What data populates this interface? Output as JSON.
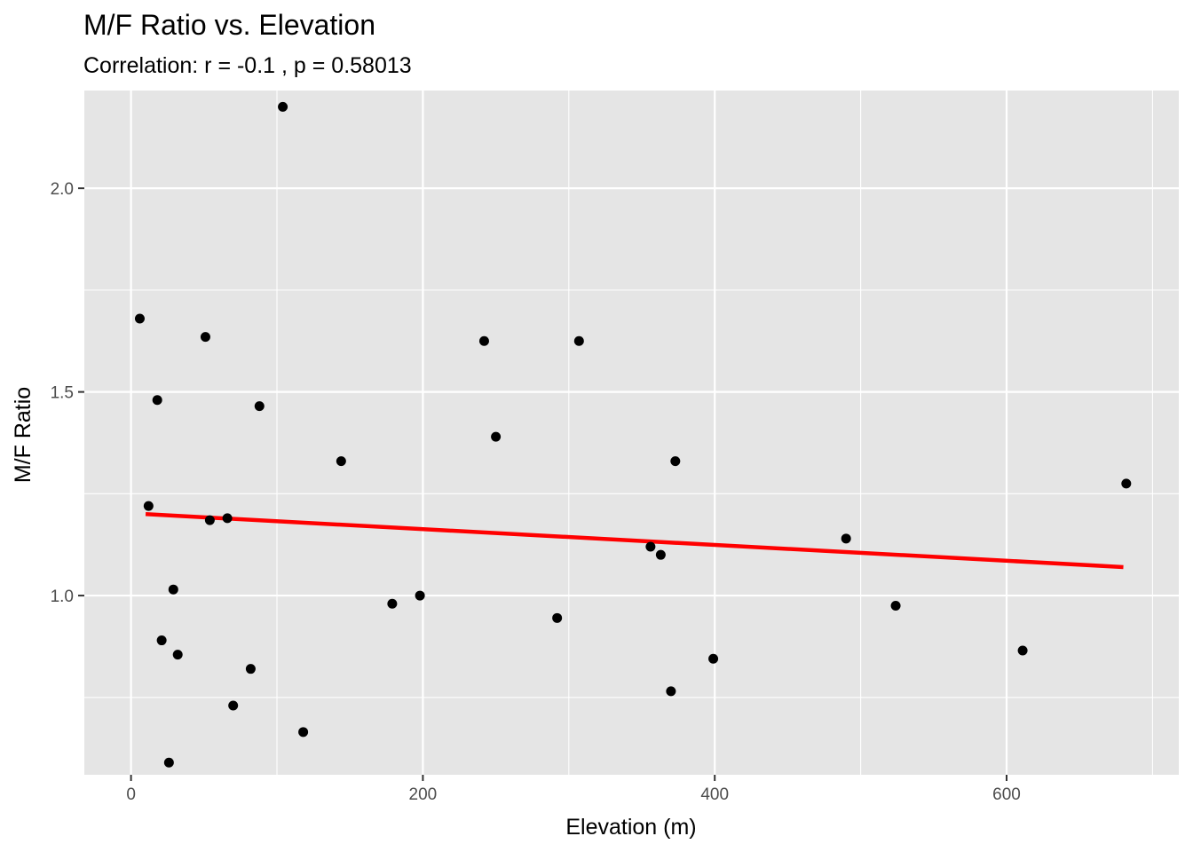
{
  "chart_data": {
    "type": "scatter",
    "title": "M/F Ratio vs. Elevation",
    "subtitle": "Correlation: r = -0.1 , p = 0.58013",
    "xlabel": "Elevation (m)",
    "ylabel": "M/F Ratio",
    "xlim": [
      -32,
      718
    ],
    "ylim": [
      0.56,
      2.24
    ],
    "x_ticks": [
      0,
      200,
      400,
      600
    ],
    "x_tick_labels": [
      "0",
      "200",
      "400",
      "600"
    ],
    "y_ticks": [
      1.0,
      1.5,
      2.0
    ],
    "y_tick_labels": [
      "1.0",
      "1.5",
      "2.0"
    ],
    "grid": true,
    "legend": "none",
    "colors": {
      "panel": "#e5e5e5",
      "grid": "#ffffff",
      "points": "#000000",
      "trend_line": "#ff0000"
    },
    "points": [
      {
        "x": 6,
        "y": 1.68
      },
      {
        "x": 12,
        "y": 1.22
      },
      {
        "x": 18,
        "y": 1.48
      },
      {
        "x": 21,
        "y": 0.89
      },
      {
        "x": 26,
        "y": 0.59
      },
      {
        "x": 29,
        "y": 1.015
      },
      {
        "x": 32,
        "y": 0.855
      },
      {
        "x": 51,
        "y": 1.635
      },
      {
        "x": 54,
        "y": 1.185
      },
      {
        "x": 66,
        "y": 1.19
      },
      {
        "x": 70,
        "y": 0.73
      },
      {
        "x": 82,
        "y": 0.82
      },
      {
        "x": 88,
        "y": 1.465
      },
      {
        "x": 104,
        "y": 2.2
      },
      {
        "x": 118,
        "y": 0.665
      },
      {
        "x": 144,
        "y": 1.33
      },
      {
        "x": 179,
        "y": 0.98
      },
      {
        "x": 198,
        "y": 1.0
      },
      {
        "x": 242,
        "y": 1.625
      },
      {
        "x": 250,
        "y": 1.39
      },
      {
        "x": 292,
        "y": 0.945
      },
      {
        "x": 307,
        "y": 1.625
      },
      {
        "x": 356,
        "y": 1.12
      },
      {
        "x": 363,
        "y": 1.1
      },
      {
        "x": 370,
        "y": 0.765
      },
      {
        "x": 373,
        "y": 1.33
      },
      {
        "x": 399,
        "y": 0.845
      },
      {
        "x": 490,
        "y": 1.14
      },
      {
        "x": 524,
        "y": 0.975
      },
      {
        "x": 611,
        "y": 0.865
      },
      {
        "x": 682,
        "y": 1.275
      }
    ],
    "trend_line": {
      "x": [
        10,
        680
      ],
      "y": [
        1.2,
        1.07
      ]
    }
  }
}
